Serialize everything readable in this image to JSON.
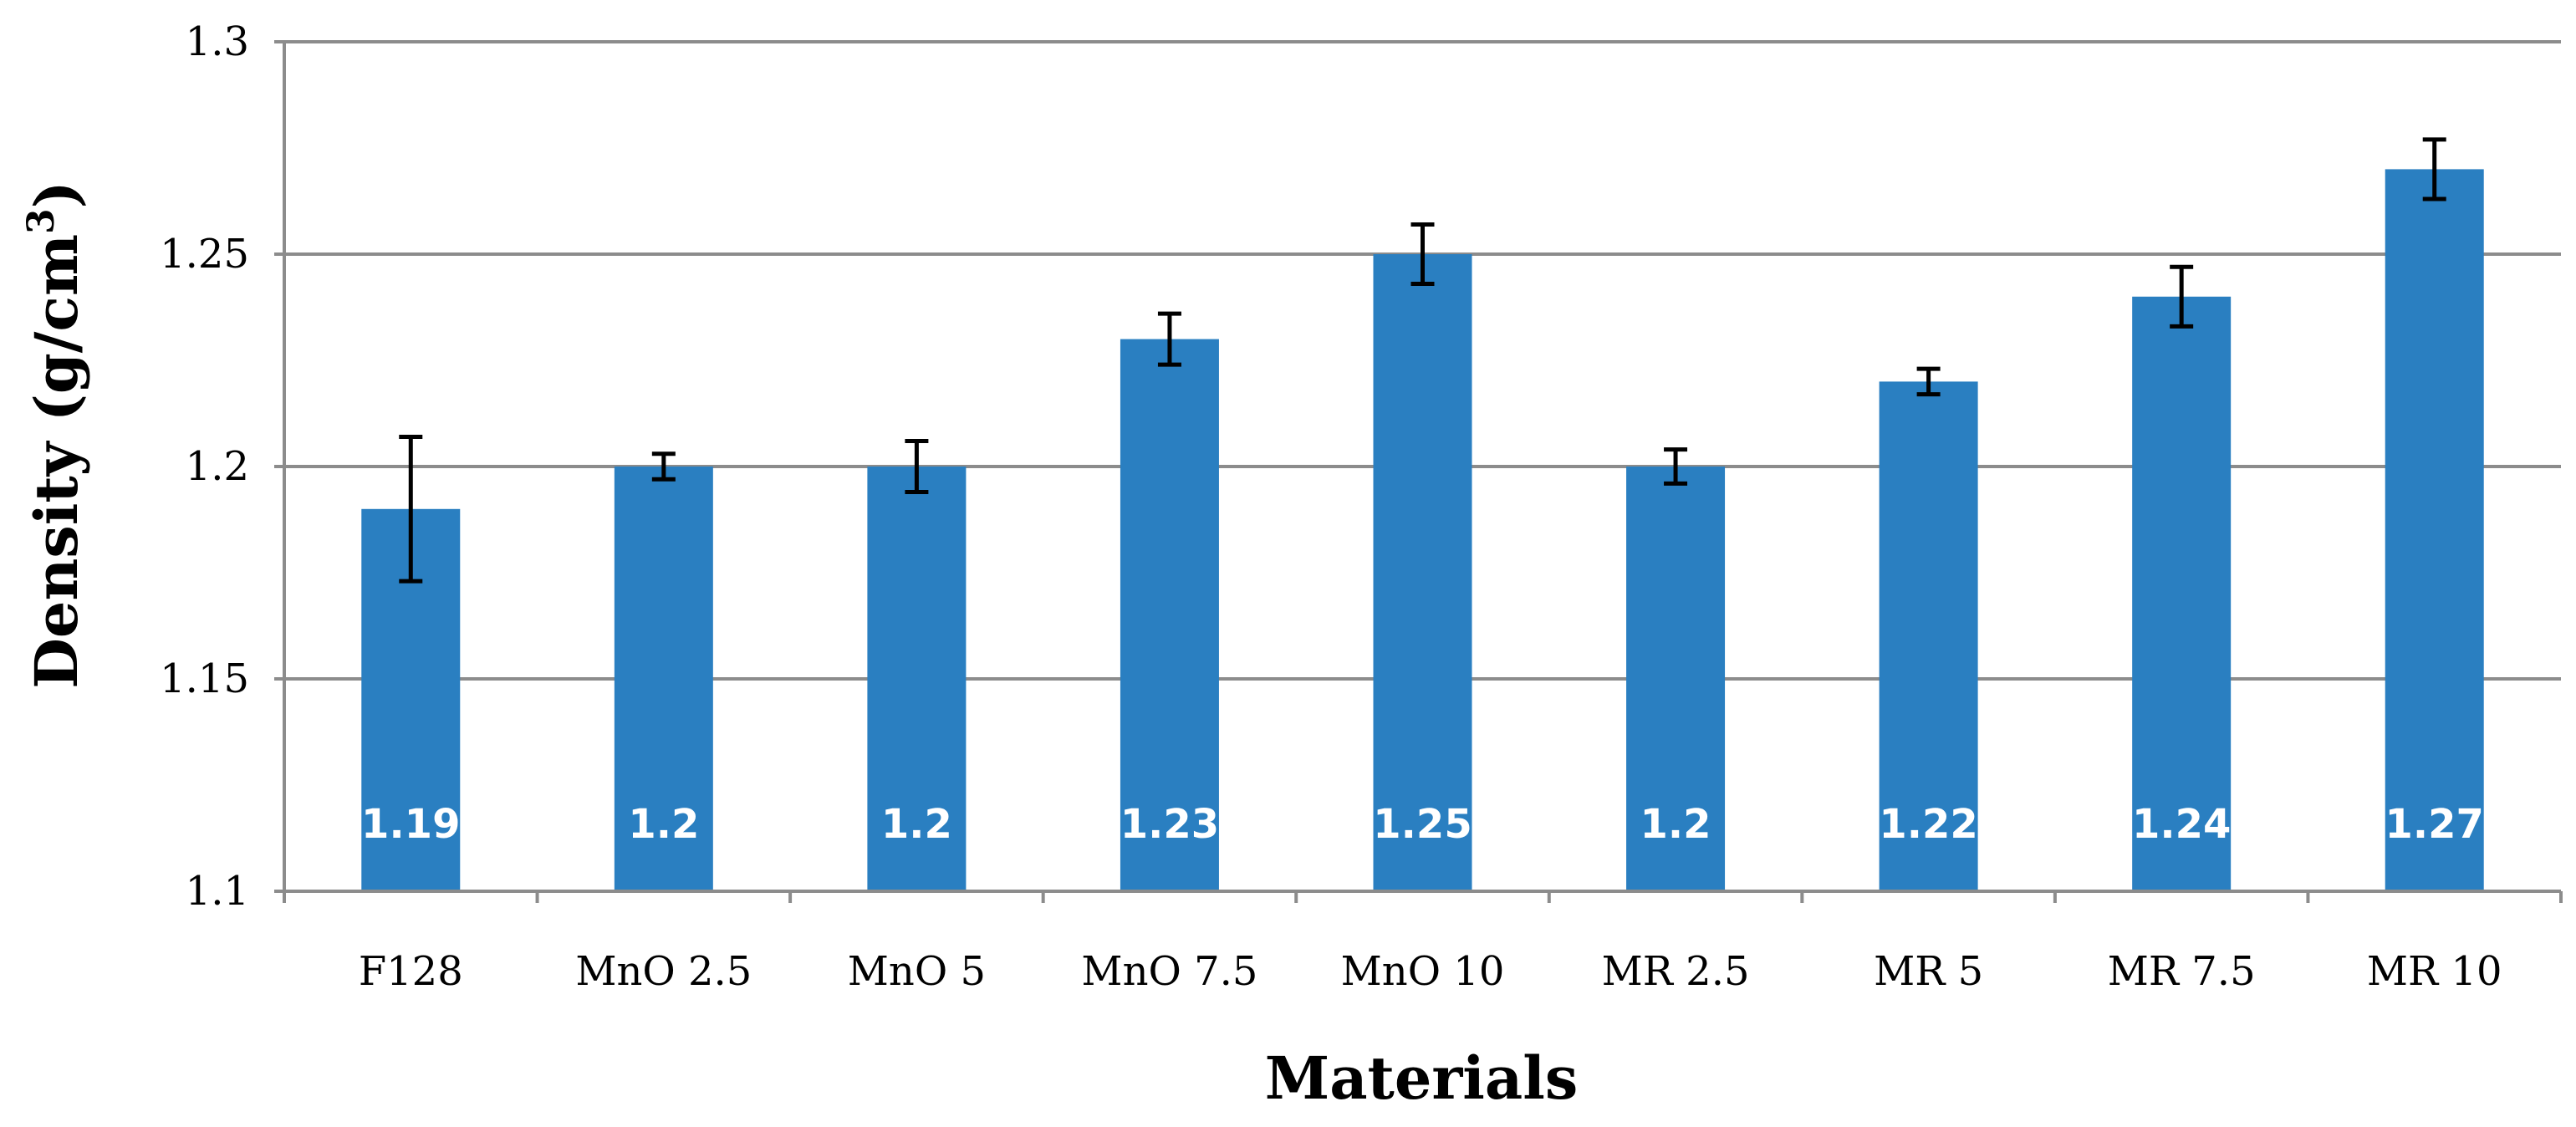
{
  "chart_data": {
    "type": "bar",
    "title": "",
    "xlabel": "Materials",
    "ylabel": "Density (g/cm",
    "ylabel_superscript": "3",
    "ylabel_close": ")",
    "categories": [
      "F128",
      "MnO 2.5",
      "MnO 5",
      "MnO 7.5",
      "MnO 10",
      "MR 2.5",
      "MR 5",
      "MR 7.5",
      "MR 10"
    ],
    "values": [
      1.19,
      1.2,
      1.2,
      1.23,
      1.25,
      1.2,
      1.22,
      1.24,
      1.27
    ],
    "data_labels": [
      "1.19",
      "1.2",
      "1.2",
      "1.23",
      "1.25",
      "1.2",
      "1.22",
      "1.24",
      "1.27"
    ],
    "error_bars": [
      0.017,
      0.003,
      0.006,
      0.006,
      0.007,
      0.004,
      0.003,
      0.007,
      0.007
    ],
    "ylim": [
      1.1,
      1.3
    ],
    "yticks": [
      1.1,
      1.15,
      1.2,
      1.25,
      1.3
    ],
    "ytick_labels": [
      "1.1",
      "1.15",
      "1.2",
      "1.25",
      "1.3"
    ],
    "grid": true,
    "legend": "none",
    "colors": {
      "bar": "#2a7fc1",
      "grid": "#8c8c8c",
      "error_bar": "#000000",
      "data_label": "#ffffff"
    }
  }
}
